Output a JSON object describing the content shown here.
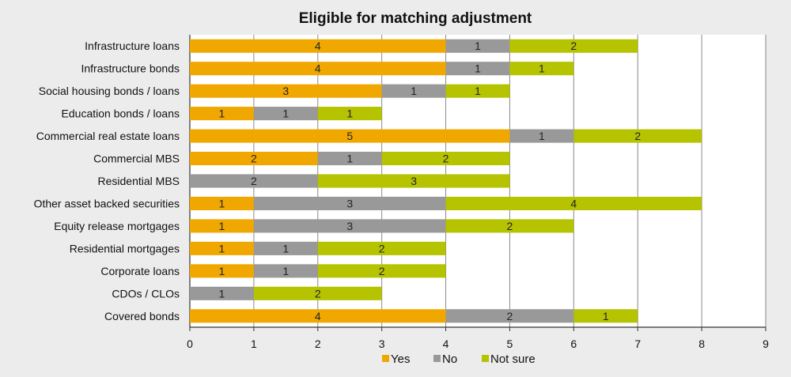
{
  "chart_data": {
    "type": "bar",
    "orientation": "horizontal",
    "stacked": true,
    "title": "Eligible for matching adjustment",
    "xlabel": "",
    "ylabel": "",
    "xlim": [
      0,
      9
    ],
    "x_ticks": [
      "0",
      "1",
      "2",
      "3",
      "4",
      "5",
      "6",
      "7",
      "8",
      "9"
    ],
    "grid": "vertical",
    "legend_position": "bottom",
    "categories": [
      "Infrastructure loans",
      "Infrastructure bonds",
      "Social housing bonds / loans",
      "Education bonds / loans",
      "Commercial real estate loans",
      "Commercial MBS",
      "Residential MBS",
      "Other asset backed securities",
      "Equity release mortgages",
      "Residential mortgages",
      "Corporate loans",
      "CDOs / CLOs",
      "Covered bonds"
    ],
    "series": [
      {
        "name": "Yes",
        "color": "#f0a800",
        "values": [
          4,
          4,
          3,
          1,
          5,
          2,
          0,
          1,
          1,
          1,
          1,
          0,
          4
        ]
      },
      {
        "name": "No",
        "color": "#999999",
        "values": [
          1,
          1,
          1,
          1,
          1,
          1,
          2,
          3,
          3,
          1,
          1,
          1,
          2
        ]
      },
      {
        "name": "Not sure",
        "color": "#b5c300",
        "values": [
          2,
          1,
          1,
          1,
          2,
          2,
          3,
          4,
          2,
          2,
          2,
          2,
          1
        ]
      }
    ]
  }
}
